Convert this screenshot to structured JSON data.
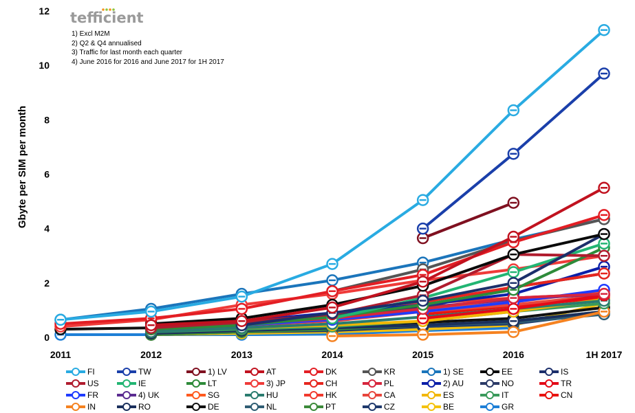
{
  "brand": "tefficient",
  "notes": [
    "1) Excl M2M",
    "2) Q2 & Q4 annualised",
    "3) Traffic for last month each quarter",
    "4) June 2016 for 2016 and June 2017 for 1H 2017"
  ],
  "chart_data": {
    "type": "line",
    "title": "",
    "xlabel": "",
    "ylabel": "Gbyte per SIM per month",
    "categories": [
      "2011",
      "2012",
      "2013",
      "2014",
      "2015",
      "2016",
      "1H 2017"
    ],
    "ylim": [
      0,
      12
    ],
    "yticks": [
      0,
      2,
      4,
      6,
      8,
      10,
      12
    ],
    "grid": false,
    "legend_position": "bottom",
    "series": [
      {
        "name": "FI",
        "color": "#29abe2",
        "values": [
          0.65,
          0.95,
          1.5,
          2.7,
          5.05,
          8.35,
          11.3
        ]
      },
      {
        "name": "TW",
        "color": "#1a3faa",
        "values": [
          null,
          null,
          null,
          null,
          4.0,
          6.75,
          9.7
        ]
      },
      {
        "name": "1) LV",
        "color": "#7f1020",
        "values": [
          null,
          null,
          null,
          null,
          3.65,
          4.95,
          null
        ]
      },
      {
        "name": "AT",
        "color": "#c1121f",
        "values": [
          null,
          0.45,
          0.6,
          1.1,
          2.05,
          3.7,
          5.5
        ]
      },
      {
        "name": "DK",
        "color": "#e31e24",
        "values": [
          0.5,
          0.7,
          1.05,
          1.7,
          2.3,
          3.5,
          4.5
        ]
      },
      {
        "name": "KR",
        "color": "#555555",
        "values": [
          null,
          null,
          null,
          1.7,
          2.5,
          3.55,
          4.35
        ]
      },
      {
        "name": "1) SE",
        "color": "#1b75bb",
        "values": [
          0.65,
          1.05,
          1.6,
          2.1,
          2.75,
          3.6,
          4.35
        ]
      },
      {
        "name": "EE",
        "color": "#0a0a0a",
        "values": [
          null,
          0.5,
          0.7,
          1.2,
          1.9,
          3.05,
          3.8
        ]
      },
      {
        "name": "IS",
        "color": "#1c2f6b",
        "values": [
          null,
          null,
          0.45,
          0.9,
          1.35,
          2.0,
          3.8
        ]
      },
      {
        "name": "US",
        "color": "#b01c2e",
        "values": [
          null,
          0.35,
          0.55,
          0.85,
          1.55,
          3.05,
          3.0
        ]
      },
      {
        "name": "IE",
        "color": "#22b573",
        "values": [
          null,
          null,
          null,
          0.7,
          1.45,
          2.4,
          3.45
        ]
      },
      {
        "name": "LT",
        "color": "#2e8b3a",
        "values": [
          null,
          0.3,
          0.45,
          0.75,
          1.2,
          1.75,
          3.3
        ]
      },
      {
        "name": "3) JP",
        "color": "#ef3b39",
        "values": [
          0.4,
          0.65,
          1.2,
          1.6,
          2.1,
          2.5,
          3.0
        ]
      },
      {
        "name": "CH",
        "color": "#e6261f",
        "values": [
          null,
          null,
          null,
          null,
          1.3,
          1.85,
          2.35
        ]
      },
      {
        "name": "PL",
        "color": "#d7263d",
        "values": [
          null,
          0.3,
          0.5,
          0.7,
          1.05,
          1.45,
          1.6
        ]
      },
      {
        "name": "2) AU",
        "color": "#0b1fa8",
        "values": [
          null,
          0.35,
          0.6,
          0.9,
          1.2,
          1.6,
          2.6
        ]
      },
      {
        "name": "NO",
        "color": "#2b3a67",
        "values": [
          null,
          0.3,
          0.5,
          0.8,
          1.1,
          1.85,
          2.35
        ]
      },
      {
        "name": "TR",
        "color": "#e30a17",
        "values": [
          null,
          null,
          null,
          null,
          0.7,
          1.05,
          1.55
        ]
      },
      {
        "name": "FR",
        "color": "#1f3cff",
        "values": [
          null,
          0.3,
          0.45,
          0.65,
          0.95,
          1.3,
          1.75
        ]
      },
      {
        "name": "4) UK",
        "color": "#5b2c91",
        "values": [
          null,
          0.3,
          0.45,
          0.7,
          1.1,
          1.4,
          1.6
        ]
      },
      {
        "name": "SG",
        "color": "#ff5a1f",
        "values": [
          null,
          null,
          null,
          0.7,
          1.0,
          1.3,
          1.7
        ]
      },
      {
        "name": "HU",
        "color": "#2a7c6f",
        "values": [
          null,
          0.2,
          0.35,
          0.5,
          0.75,
          1.05,
          1.35
        ]
      },
      {
        "name": "HK",
        "color": "#f23a2e",
        "values": [
          null,
          null,
          null,
          0.8,
          1.25,
          1.45,
          1.6
        ]
      },
      {
        "name": "CA",
        "color": "#e8453c",
        "values": [
          null,
          0.3,
          0.45,
          0.6,
          0.95,
          1.2,
          1.55
        ]
      },
      {
        "name": "ES",
        "color": "#f2b705",
        "values": [
          null,
          0.25,
          0.35,
          0.45,
          0.6,
          0.95,
          1.4
        ]
      },
      {
        "name": "IT",
        "color": "#3a9a5b",
        "values": [
          null,
          0.2,
          0.3,
          0.4,
          0.6,
          0.95,
          1.25
        ]
      },
      {
        "name": "CN",
        "color": "#e8130f",
        "values": [
          null,
          null,
          null,
          null,
          0.85,
          1.15,
          1.45
        ]
      },
      {
        "name": "IN",
        "color": "#f58220",
        "values": [
          null,
          null,
          null,
          0.05,
          0.1,
          0.2,
          0.95
        ]
      },
      {
        "name": "RO",
        "color": "#1a2f5c",
        "values": [
          null,
          0.15,
          0.25,
          0.35,
          0.45,
          0.6,
          0.95
        ]
      },
      {
        "name": "DE",
        "color": "#111111",
        "values": [
          0.3,
          0.35,
          0.4,
          0.45,
          0.55,
          0.7,
          1.1
        ]
      },
      {
        "name": "NL",
        "color": "#2f5d73",
        "values": [
          null,
          0.15,
          0.25,
          0.35,
          0.45,
          0.55,
          0.85
        ]
      },
      {
        "name": "PT",
        "color": "#3c8a3a",
        "values": [
          null,
          0.1,
          0.2,
          0.3,
          0.45,
          0.6,
          0.95
        ]
      },
      {
        "name": "CZ",
        "color": "#1f3a6d",
        "values": [
          null,
          0.1,
          0.2,
          0.25,
          0.4,
          0.5,
          0.9
        ]
      },
      {
        "name": "BE",
        "color": "#f4c20d",
        "values": [
          null,
          0.1,
          0.15,
          0.2,
          0.3,
          0.45,
          1.25
        ]
      },
      {
        "name": "GR",
        "color": "#1e7fd6",
        "values": [
          0.1,
          0.1,
          0.1,
          0.12,
          0.25,
          0.35,
          null
        ]
      }
    ]
  }
}
